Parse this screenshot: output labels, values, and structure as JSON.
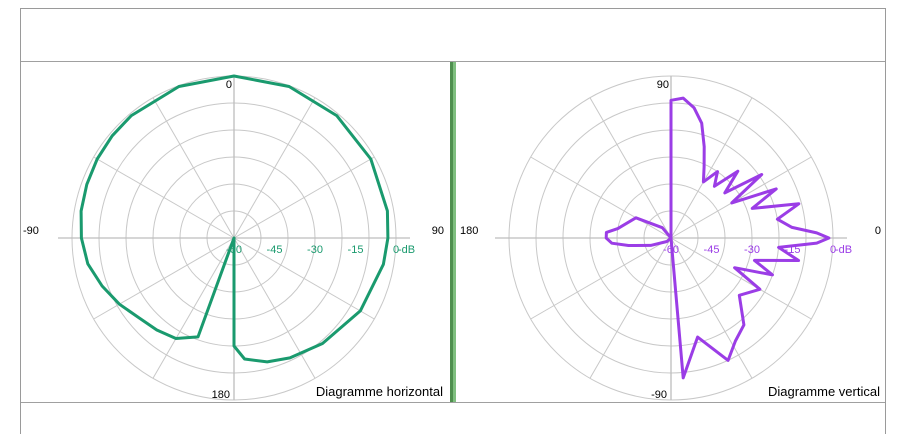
{
  "chart_data": [
    {
      "type": "polar-line",
      "title": "Diagramme horizontal",
      "angle_labels": {
        "top": "0",
        "right": "90",
        "bottom": "180",
        "left": "-90"
      },
      "radial_unit": "dB",
      "radial_unit_label": "-dB",
      "radial_ticks": [
        "-60",
        "-45",
        "-30",
        "-15",
        "0"
      ],
      "r_range_db": [
        -60,
        0
      ],
      "color": "#1a9a6e",
      "series": [
        {
          "angles_deg": [
            0,
            20,
            40,
            60,
            80,
            90,
            100,
            120,
            140,
            155,
            165,
            175,
            180,
            190,
            200,
            210,
            220,
            230,
            240,
            250,
            260,
            270,
            280,
            290,
            300,
            310,
            320,
            340,
            360
          ],
          "values_db": [
            0,
            -0.3,
            -0.8,
            -1.5,
            -2.3,
            -3,
            -3.8,
            -6,
            -9,
            -11,
            -12.5,
            -15,
            -20,
            -60,
            -21,
            -17,
            -15.5,
            -14,
            -11,
            -8,
            -5,
            -3.5,
            -2.5,
            -2,
            -1.5,
            -1.1,
            -0.8,
            -0.3,
            0
          ]
        }
      ]
    },
    {
      "type": "polar-line",
      "title": "Diagramme vertical",
      "angle_labels": {
        "top": "90",
        "right": "0",
        "bottom": "-90",
        "left": "180"
      },
      "radial_unit": "dB",
      "radial_unit_label": "-dB",
      "radial_ticks": [
        "-60",
        "-45",
        "-30",
        "-15",
        "0"
      ],
      "r_range_db": [
        -60,
        0
      ],
      "color": "#9b3de6",
      "series": [
        {
          "angles_deg": [
            -92,
            -85,
            -75,
            -65,
            -58,
            -50,
            -40,
            -30,
            -25,
            -20,
            -15,
            -10,
            -5,
            -2,
            0,
            2,
            5,
            10,
            15,
            20,
            25,
            30,
            35,
            40,
            45,
            50,
            55,
            60,
            65,
            70,
            75,
            80,
            85,
            90,
            95,
            100,
            110,
            130,
            150,
            170,
            175,
            180,
            185,
            190,
            200,
            220,
            250,
            268
          ],
          "values_db": [
            -60,
            -8,
            -22,
            -10,
            -15,
            -18,
            -27,
            -22,
            -34,
            -20,
            -28,
            -12,
            -20,
            -6,
            -1.5,
            -6,
            -15,
            -20,
            -11,
            -28,
            -17,
            -34,
            -19,
            -34,
            -25,
            -35,
            -30,
            -36,
            -31,
            -24,
            -16,
            -11,
            -8,
            -9,
            -60,
            -60,
            -60,
            -55,
            -45,
            -40,
            -36,
            -36,
            -38,
            -44,
            -52,
            -58,
            -60,
            -60
          ]
        }
      ]
    }
  ]
}
